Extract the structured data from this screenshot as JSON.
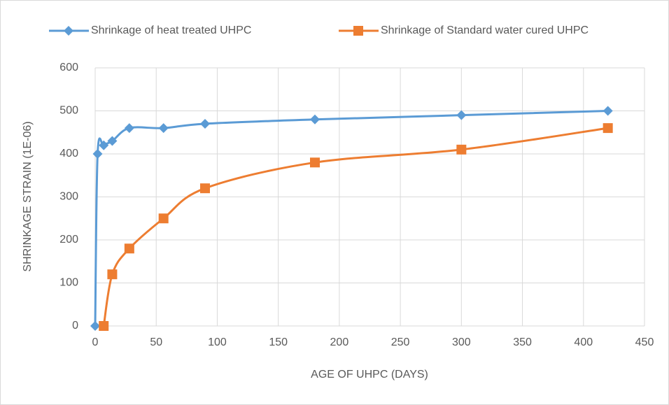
{
  "chart_data": {
    "type": "scatter_smooth",
    "xlabel": "AGE OF UHPC (DAYS)",
    "ylabel": "SHRINKAGE STRAIN (1E-06)",
    "xlim": [
      0,
      450
    ],
    "xticks": [
      0,
      50,
      100,
      150,
      200,
      250,
      300,
      350,
      400,
      450
    ],
    "ylim": [
      0,
      600
    ],
    "yticks": [
      0,
      100,
      200,
      300,
      400,
      500,
      600
    ],
    "grid": true,
    "legend": "top",
    "series": [
      {
        "name": "Shrinkage of heat treated UHPC",
        "color": "#5b9bd5",
        "marker": "diamond",
        "x": [
          0,
          2,
          7,
          14,
          28,
          56,
          90,
          180,
          300,
          420
        ],
        "values": [
          0,
          400,
          420,
          430,
          460,
          460,
          470,
          480,
          490,
          500
        ]
      },
      {
        "name": "Shrinkage of Standard water cured UHPC",
        "color": "#ed7d31",
        "marker": "square",
        "x": [
          7,
          14,
          28,
          56,
          90,
          180,
          300,
          420
        ],
        "values": [
          0,
          120,
          180,
          250,
          320,
          380,
          410,
          460
        ]
      }
    ]
  }
}
